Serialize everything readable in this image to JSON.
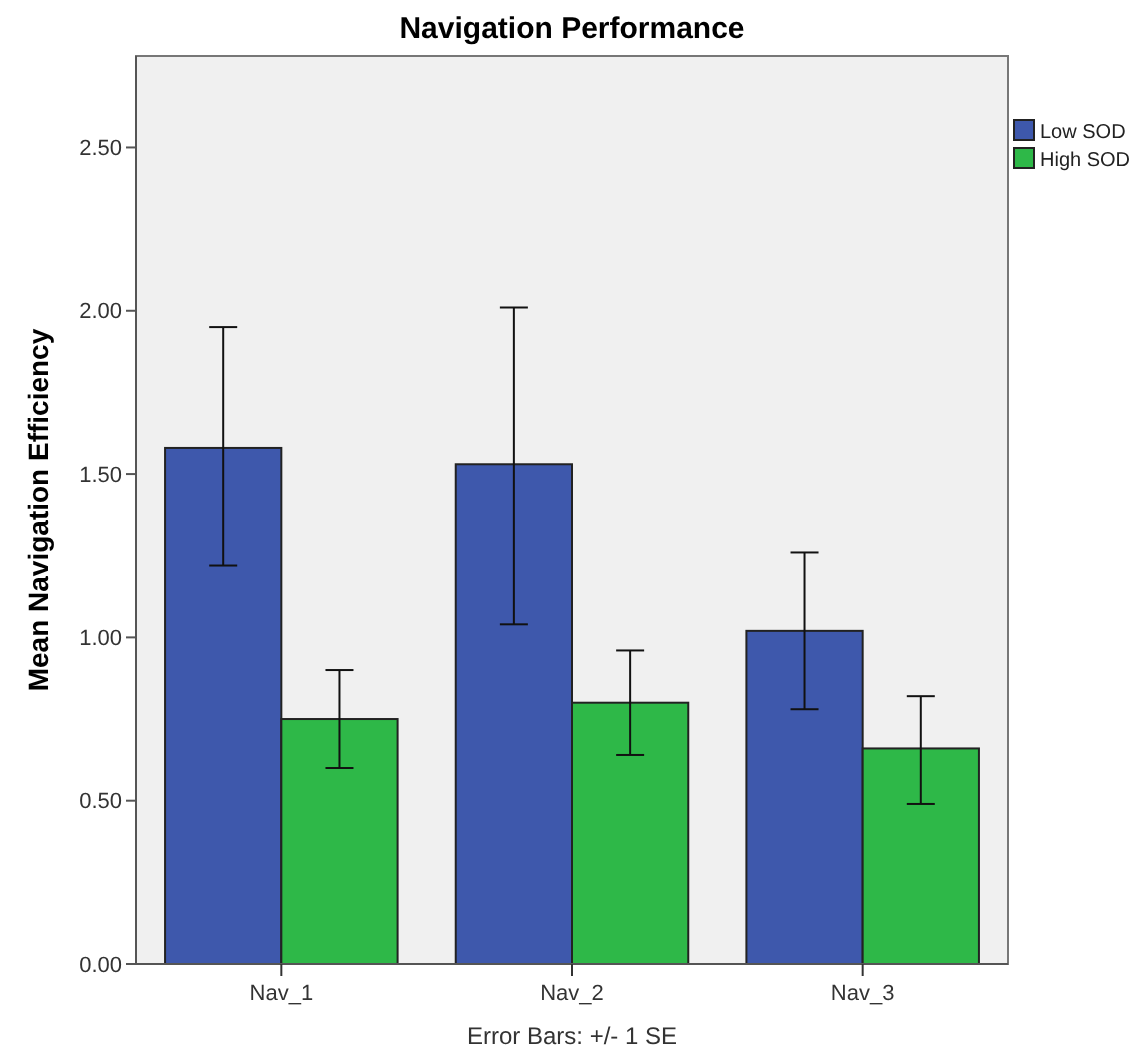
{
  "chart_data": {
    "type": "bar",
    "title": "Navigation Performance",
    "ylabel": "Mean Navigation Efficiency",
    "categories": [
      "Nav_1",
      "Nav_2",
      "Nav_3"
    ],
    "series": [
      {
        "name": "Low SOD",
        "color": "#3e58ac",
        "values": [
          1.58,
          1.53,
          1.02
        ],
        "errors": [
          [
            1.22,
            1.95
          ],
          [
            1.04,
            2.01
          ],
          [
            0.78,
            1.26
          ]
        ]
      },
      {
        "name": "High SOD",
        "color": "#2eb848",
        "values": [
          0.75,
          0.8,
          0.66
        ],
        "errors": [
          [
            0.6,
            0.9
          ],
          [
            0.64,
            0.96
          ],
          [
            0.49,
            0.82
          ]
        ]
      }
    ],
    "ylim": [
      0,
      2.78
    ],
    "yticks": [
      {
        "value": 0,
        "label": "0.00"
      },
      {
        "value": 0.5,
        "label": "0.50"
      },
      {
        "value": 1,
        "label": "1.00"
      },
      {
        "value": 1.5,
        "label": "1.50"
      },
      {
        "value": 2,
        "label": "2.00"
      },
      {
        "value": 2.5,
        "label": "2.50"
      }
    ],
    "legend": "top right",
    "grid": false,
    "annotations": [
      "Error Bars: +/- 1 SE"
    ]
  }
}
